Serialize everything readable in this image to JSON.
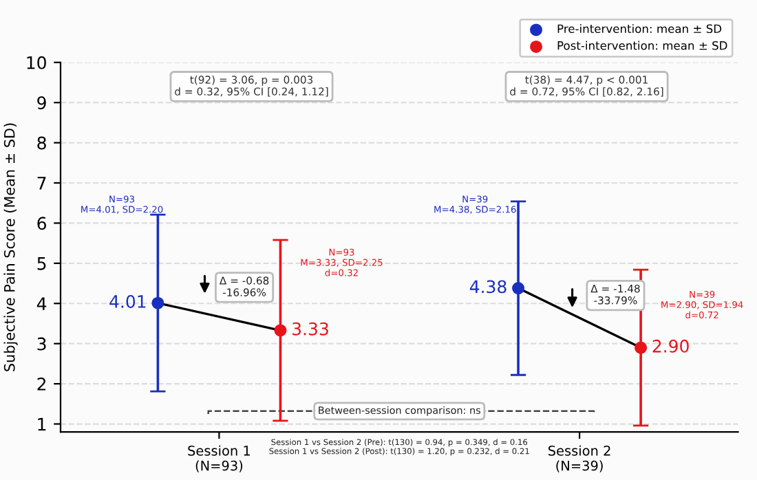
{
  "chart_data": {
    "type": "scatter",
    "ylabel": "Subjective Pain Score (Mean ± SD)",
    "categories": [
      "Session 1\n(N=93)",
      "Session 2\n(N=39)"
    ],
    "series": [
      {
        "name": "Pre-intervention: mean ± SD",
        "color": "#1a2fbf",
        "values": [
          4.01,
          4.38
        ],
        "errors": [
          2.2,
          2.16
        ],
        "value_labels": [
          "4.01",
          "4.38"
        ]
      },
      {
        "name": "Post-intervention: mean ± SD",
        "color": "#e8141a",
        "values": [
          3.33,
          2.9
        ],
        "errors": [
          2.25,
          1.94
        ],
        "value_labels": [
          "3.33",
          "2.90"
        ]
      }
    ],
    "ylim": [
      0.8,
      10
    ],
    "yticks": [
      1,
      2,
      3,
      4,
      5,
      6,
      7,
      8,
      9,
      10
    ],
    "grid": "y",
    "legend": "top right",
    "marker": "circle",
    "line_style": "solid",
    "data_labels": true,
    "annotations": [
      "t(92) = 3.06, p = 0.003\nd = 0.32, 95% CI [0.24, 1.12]",
      "t(38) = 4.47, p < 0.001\nd = 0.72, 95% CI [0.82, 2.16]",
      "N=93\nM=4.01, SD=2.20",
      "N=93\nM=3.33, SD=2.25\nd=0.32",
      "N=39\nM=4.38, SD=2.16",
      "N=39\nM=2.90, SD=1.94\nd=0.72",
      "Δ = -0.68\n-16.96%",
      "Δ = -1.48\n-33.79%",
      "Between-session comparison: ns",
      "Session 1 vs Session 2 (Pre): t(130) = 0.94, p = 0.349, d = 0.16\nSession 1 vs Session 2 (Post): t(130) = 1.20, p = 0.232, d = 0.21"
    ]
  }
}
